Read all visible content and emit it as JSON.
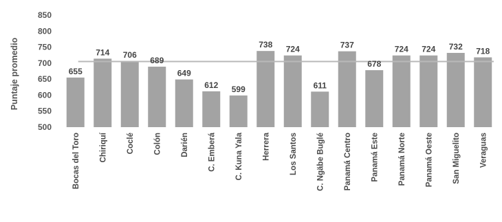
{
  "chart_data": {
    "type": "bar",
    "ylabel": "Puntaje promedio",
    "xlabel": "",
    "ylim": [
      500,
      850
    ],
    "yticks": [
      500,
      550,
      600,
      650,
      700,
      750,
      800,
      850
    ],
    "categories": [
      "Bocas del Toro",
      "Chiriquí",
      "Coclé",
      "Colón",
      "Darién",
      "C. Emberá",
      "C. Kuna Yala",
      "Herrera",
      "Los Santos",
      "C. Ngäbe Buglé",
      "Panamá Centro",
      "Panamá Este",
      "Panamá Norte",
      "Panamá Oeste",
      "San Miguelito",
      "Veraguas"
    ],
    "values": [
      655,
      714,
      706,
      689,
      649,
      612,
      599,
      738,
      724,
      611,
      737,
      678,
      724,
      724,
      732,
      718
    ],
    "reference_line": 705,
    "grid": false,
    "bar_color": "#a3a3a3",
    "reference_line_color": "#b8b8b8"
  }
}
